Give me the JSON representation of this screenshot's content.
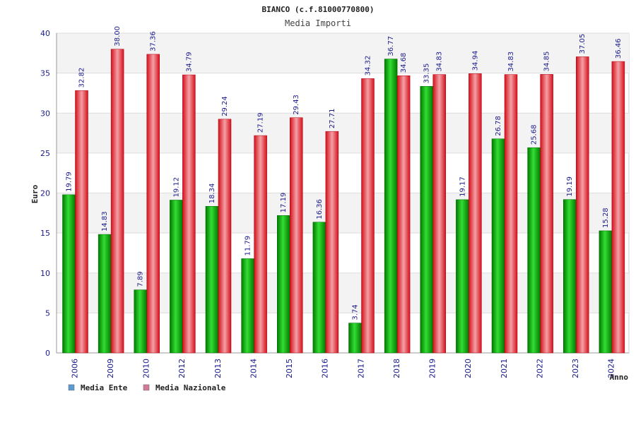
{
  "chart_data": {
    "type": "bar",
    "title": "BIANCO (c.f.81000770800)",
    "subtitle": "Media Importi",
    "xlabel": "Anno",
    "ylabel": "Euro",
    "ylim": [
      0,
      40
    ],
    "yticks": [
      0,
      5,
      10,
      15,
      20,
      25,
      30,
      35,
      40
    ],
    "grid": true,
    "legend_position": "bottom-left",
    "categories": [
      "2006",
      "2009",
      "2010",
      "2012",
      "2013",
      "2014",
      "2015",
      "2016",
      "2017",
      "2018",
      "2019",
      "2020",
      "2021",
      "2022",
      "2023",
      "2024"
    ],
    "series": [
      {
        "name": "Media Ente",
        "color": "#00aa00",
        "legend_color": "#5b9bd5",
        "values": [
          19.79,
          14.83,
          7.89,
          19.12,
          18.34,
          11.79,
          17.19,
          16.36,
          3.74,
          36.77,
          33.35,
          19.17,
          26.78,
          25.68,
          19.19,
          15.28
        ],
        "labels": [
          "19.79",
          "14.83",
          "7.89",
          "19.12",
          "18.34",
          "11.79",
          "17.19",
          "16.36",
          "3.74",
          "36.77",
          "33.35",
          "19.17",
          "26.78",
          "25.68",
          "19.19",
          "15.28"
        ]
      },
      {
        "name": "Media Nazionale",
        "color": "#e8202a",
        "legend_color": "#d47a9a",
        "values": [
          32.82,
          38.0,
          37.36,
          34.79,
          29.24,
          27.19,
          29.43,
          27.71,
          34.32,
          34.68,
          34.83,
          34.94,
          34.83,
          34.85,
          37.05,
          36.46
        ],
        "labels": [
          "32.82",
          "38.00",
          "37.36",
          "34.79",
          "29.24",
          "27.19",
          "29.43",
          "27.71",
          "34.32",
          "34.68",
          "34.83",
          "34.94",
          "34.83",
          "34.85",
          "37.05",
          "36.46"
        ]
      }
    ]
  }
}
